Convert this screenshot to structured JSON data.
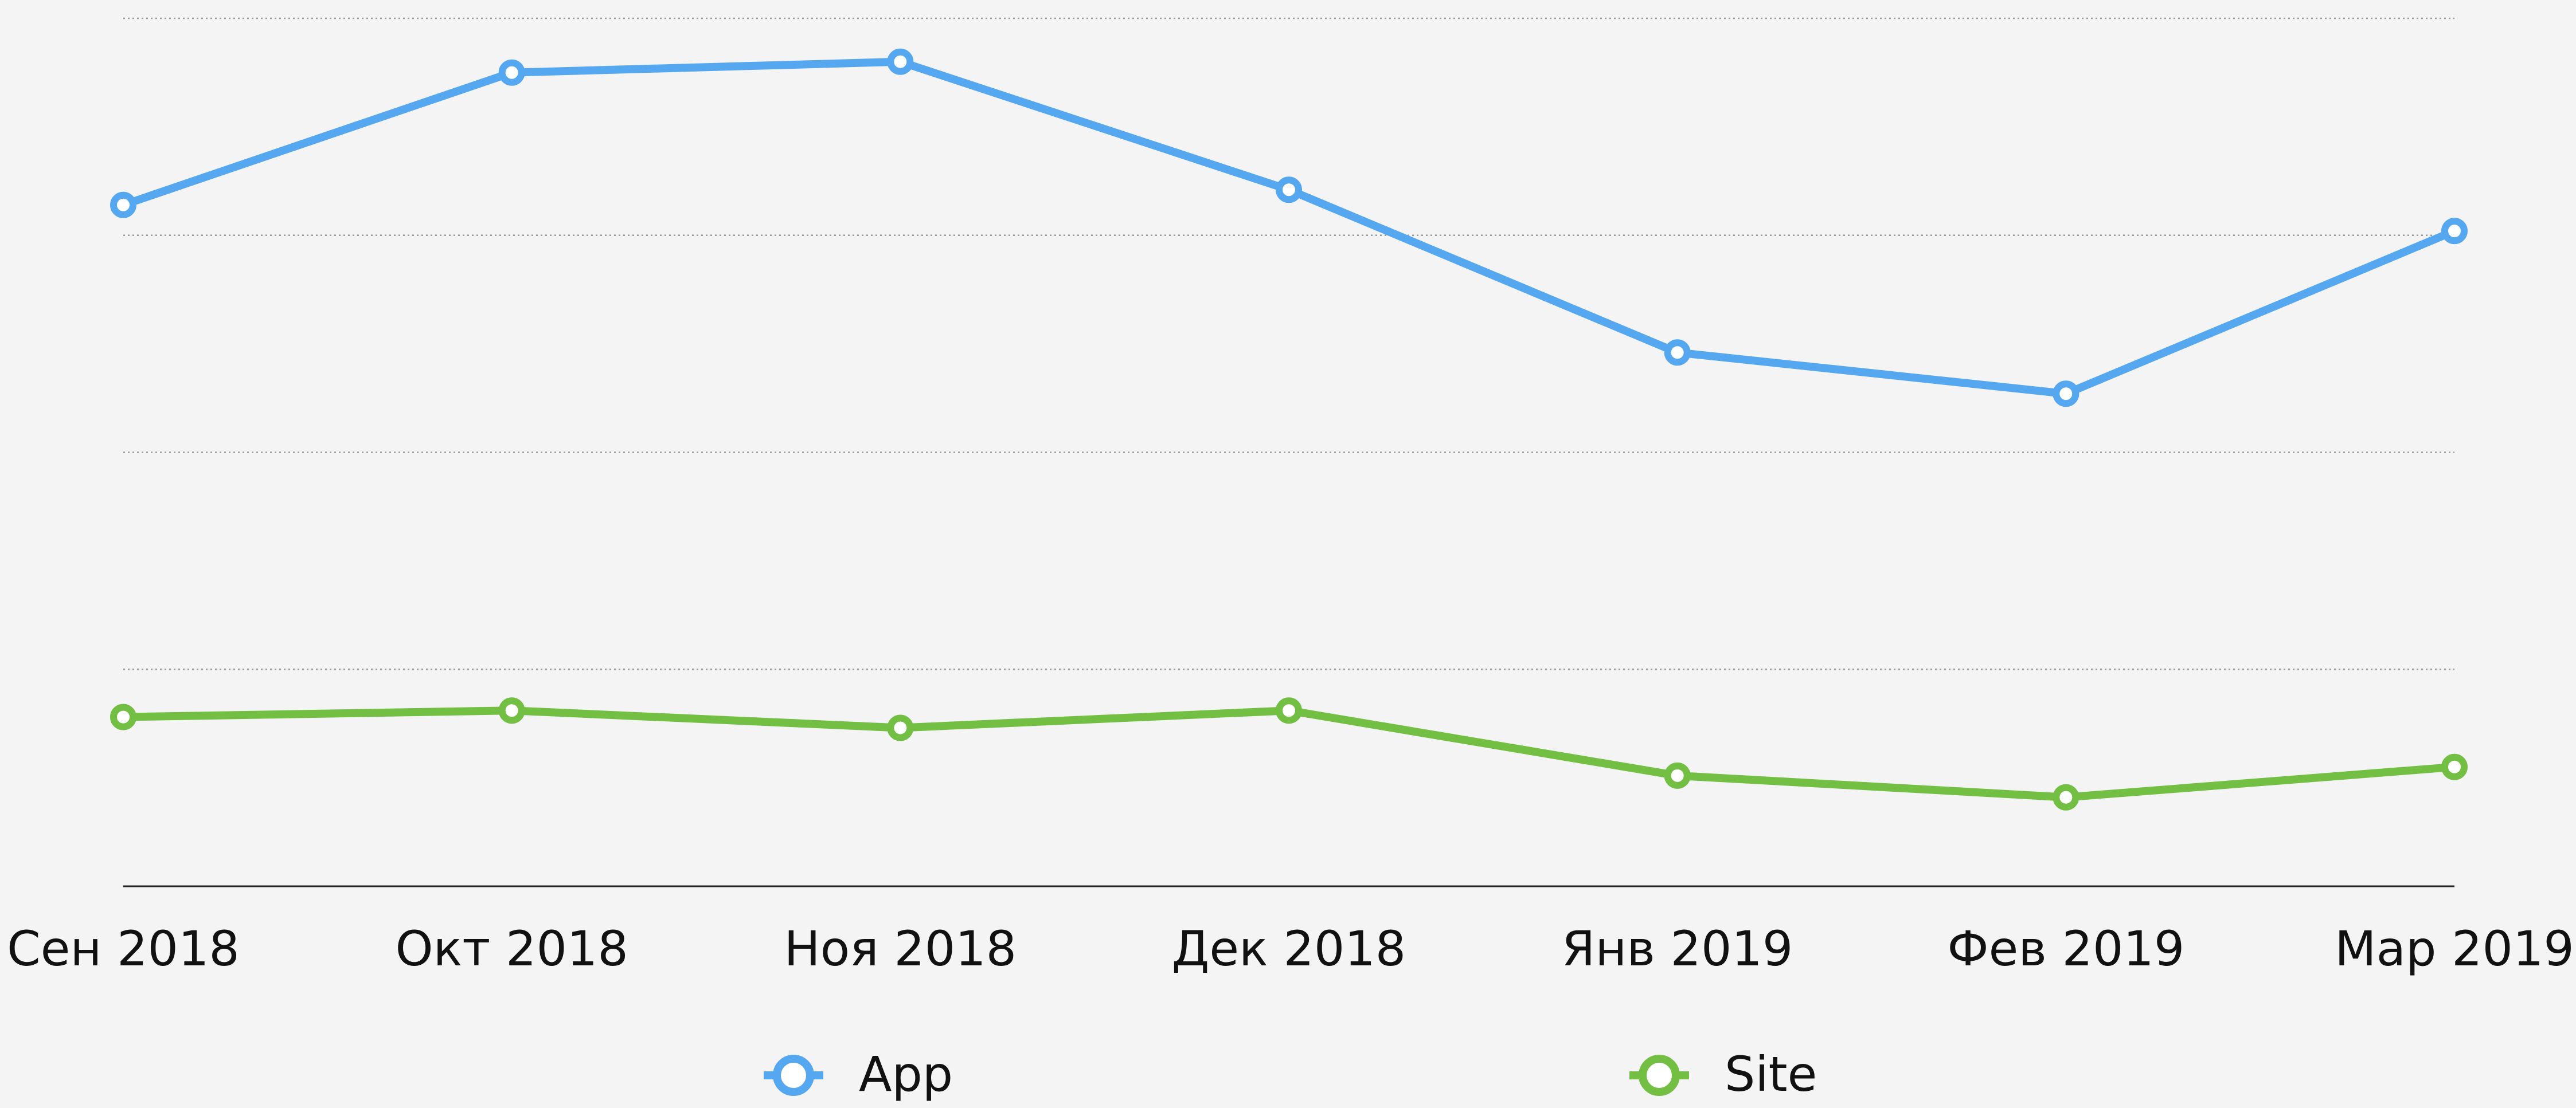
{
  "chart_data": {
    "type": "line",
    "categories": [
      "Сен 2018",
      "Окт 2018",
      "Ноя 2018",
      "Дек 2018",
      "Янв 2019",
      "Фев 2019",
      "Мар 2019"
    ],
    "series": [
      {
        "name": "App",
        "color": "#55a8f0",
        "values": [
          3.14,
          3.75,
          3.8,
          3.21,
          2.46,
          2.27,
          3.02
        ]
      },
      {
        "name": "Site",
        "color": "#72bf44",
        "values": [
          0.78,
          0.81,
          0.73,
          0.81,
          0.51,
          0.41,
          0.55
        ]
      }
    ],
    "ylim": [
      0,
      4
    ],
    "yticks": [
      0,
      1,
      2,
      3,
      4
    ],
    "grid": true
  }
}
